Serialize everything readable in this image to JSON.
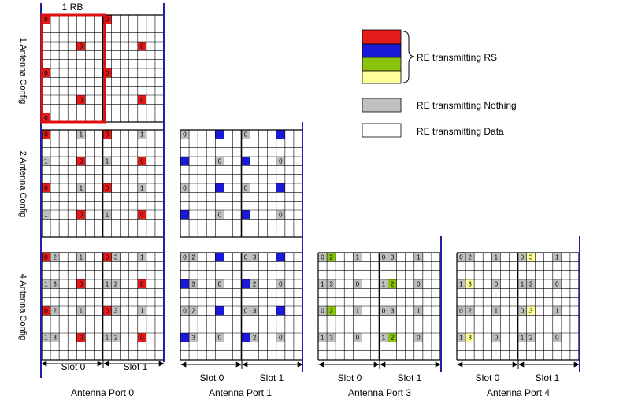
{
  "colors": {
    "rs_port0": "#e31b1b",
    "rs_port1": "#1a1ad6",
    "rs_port3": "#8ac20d",
    "rs_port4": "#ffff99",
    "nothing": "#c0c0c0",
    "data": "#ffffff",
    "separator": "#1f1fa8",
    "rb_highlight": "#e01010"
  },
  "rb_label": "1 RB",
  "row_labels": [
    "1 Antenna Config",
    "2 Antenna Config",
    "4 Antenna Config"
  ],
  "slot_labels": [
    "Slot 0",
    "Slot 1"
  ],
  "port_labels": [
    "Antenna Port 0",
    "Antenna Port 1",
    "Antenna Port 3",
    "Antenna Port 4"
  ],
  "legend": [
    {
      "label": "RE transmitting RS",
      "kind": "rs"
    },
    {
      "label": "RE transmitting Nothing",
      "kind": "nothing"
    },
    {
      "label": "RE transmitting Data",
      "kind": "data"
    }
  ],
  "grid": {
    "cols": 14,
    "rows": 12,
    "cells": [
      {
        "config": 1,
        "port": 0,
        "col": 0,
        "row": 0,
        "text": "0",
        "kind": "rs"
      },
      {
        "config": 1,
        "port": 0,
        "col": 4,
        "row": 3,
        "text": "0",
        "kind": "rs"
      },
      {
        "config": 1,
        "port": 0,
        "col": 7,
        "row": 0,
        "text": "0",
        "kind": "rs"
      },
      {
        "config": 1,
        "port": 0,
        "col": 11,
        "row": 3,
        "text": "0",
        "kind": "rs"
      },
      {
        "config": 1,
        "port": 0,
        "col": 0,
        "row": 6,
        "text": "0",
        "kind": "rs"
      },
      {
        "config": 1,
        "port": 0,
        "col": 4,
        "row": 9,
        "text": "0",
        "kind": "rs"
      },
      {
        "config": 1,
        "port": 0,
        "col": 7,
        "row": 6,
        "text": "0",
        "kind": "rs"
      },
      {
        "config": 1,
        "port": 0,
        "col": 11,
        "row": 9,
        "text": "0",
        "kind": "rs"
      },
      {
        "config": 1,
        "port": 0,
        "col": 0,
        "row": 11,
        "text": "0",
        "kind": "rs"
      },
      {
        "config": 2,
        "port": 0,
        "col": 0,
        "row": 0,
        "text": "0",
        "kind": "rs"
      },
      {
        "config": 2,
        "port": 0,
        "col": 4,
        "row": 0,
        "text": "1",
        "kind": "nothing"
      },
      {
        "config": 2,
        "port": 0,
        "col": 7,
        "row": 0,
        "text": "0",
        "kind": "rs"
      },
      {
        "config": 2,
        "port": 0,
        "col": 11,
        "row": 0,
        "text": "1",
        "kind": "nothing"
      },
      {
        "config": 2,
        "port": 0,
        "col": 0,
        "row": 3,
        "text": "1",
        "kind": "nothing"
      },
      {
        "config": 2,
        "port": 0,
        "col": 4,
        "row": 3,
        "text": "0",
        "kind": "rs"
      },
      {
        "config": 2,
        "port": 0,
        "col": 7,
        "row": 3,
        "text": "1",
        "kind": "nothing"
      },
      {
        "config": 2,
        "port": 0,
        "col": 11,
        "row": 3,
        "text": "0",
        "kind": "rs"
      },
      {
        "config": 2,
        "port": 0,
        "col": 0,
        "row": 6,
        "text": "0",
        "kind": "rs"
      },
      {
        "config": 2,
        "port": 0,
        "col": 4,
        "row": 6,
        "text": "1",
        "kind": "nothing"
      },
      {
        "config": 2,
        "port": 0,
        "col": 7,
        "row": 6,
        "text": "0",
        "kind": "rs"
      },
      {
        "config": 2,
        "port": 0,
        "col": 11,
        "row": 6,
        "text": "1",
        "kind": "nothing"
      },
      {
        "config": 2,
        "port": 0,
        "col": 0,
        "row": 9,
        "text": "1",
        "kind": "nothing"
      },
      {
        "config": 2,
        "port": 0,
        "col": 4,
        "row": 9,
        "text": "0",
        "kind": "rs"
      },
      {
        "config": 2,
        "port": 0,
        "col": 7,
        "row": 9,
        "text": "1",
        "kind": "nothing"
      },
      {
        "config": 2,
        "port": 0,
        "col": 11,
        "row": 9,
        "text": "0",
        "kind": "rs"
      },
      {
        "config": 2,
        "port": 1,
        "col": 0,
        "row": 0,
        "text": "0",
        "kind": "nothing"
      },
      {
        "config": 2,
        "port": 1,
        "col": 4,
        "row": 0,
        "text": "",
        "kind": "rs"
      },
      {
        "config": 2,
        "port": 1,
        "col": 7,
        "row": 0,
        "text": "0",
        "kind": "nothing"
      },
      {
        "config": 2,
        "port": 1,
        "col": 11,
        "row": 0,
        "text": "",
        "kind": "rs"
      },
      {
        "config": 2,
        "port": 1,
        "col": 0,
        "row": 3,
        "text": "",
        "kind": "rs"
      },
      {
        "config": 2,
        "port": 1,
        "col": 4,
        "row": 3,
        "text": "0",
        "kind": "nothing"
      },
      {
        "config": 2,
        "port": 1,
        "col": 7,
        "row": 3,
        "text": "",
        "kind": "rs"
      },
      {
        "config": 2,
        "port": 1,
        "col": 11,
        "row": 3,
        "text": "0",
        "kind": "nothing"
      },
      {
        "config": 2,
        "port": 1,
        "col": 0,
        "row": 6,
        "text": "0",
        "kind": "nothing"
      },
      {
        "config": 2,
        "port": 1,
        "col": 4,
        "row": 6,
        "text": "",
        "kind": "rs"
      },
      {
        "config": 2,
        "port": 1,
        "col": 7,
        "row": 6,
        "text": "0",
        "kind": "nothing"
      },
      {
        "config": 2,
        "port": 1,
        "col": 11,
        "row": 6,
        "text": "",
        "kind": "rs"
      },
      {
        "config": 2,
        "port": 1,
        "col": 0,
        "row": 9,
        "text": "",
        "kind": "rs"
      },
      {
        "config": 2,
        "port": 1,
        "col": 4,
        "row": 9,
        "text": "0",
        "kind": "nothing"
      },
      {
        "config": 2,
        "port": 1,
        "col": 7,
        "row": 9,
        "text": "",
        "kind": "rs"
      },
      {
        "config": 2,
        "port": 1,
        "col": 11,
        "row": 9,
        "text": "0",
        "kind": "nothing"
      },
      {
        "config": 4,
        "port": 0,
        "col": 0,
        "row": 0,
        "text": "0",
        "kind": "rs"
      },
      {
        "config": 4,
        "port": 0,
        "col": 1,
        "row": 0,
        "text": "2",
        "kind": "nothing"
      },
      {
        "config": 4,
        "port": 0,
        "col": 4,
        "row": 0,
        "text": "1",
        "kind": "nothing"
      },
      {
        "config": 4,
        "port": 0,
        "col": 7,
        "row": 0,
        "text": "0",
        "kind": "rs"
      },
      {
        "config": 4,
        "port": 0,
        "col": 8,
        "row": 0,
        "text": "3",
        "kind": "nothing"
      },
      {
        "config": 4,
        "port": 0,
        "col": 11,
        "row": 0,
        "text": "1",
        "kind": "nothing"
      },
      {
        "config": 4,
        "port": 0,
        "col": 0,
        "row": 3,
        "text": "1",
        "kind": "nothing"
      },
      {
        "config": 4,
        "port": 0,
        "col": 1,
        "row": 3,
        "text": "3",
        "kind": "nothing"
      },
      {
        "config": 4,
        "port": 0,
        "col": 4,
        "row": 3,
        "text": "0",
        "kind": "rs"
      },
      {
        "config": 4,
        "port": 0,
        "col": 7,
        "row": 3,
        "text": "1",
        "kind": "nothing"
      },
      {
        "config": 4,
        "port": 0,
        "col": 8,
        "row": 3,
        "text": "2",
        "kind": "nothing"
      },
      {
        "config": 4,
        "port": 0,
        "col": 11,
        "row": 3,
        "text": "0",
        "kind": "rs"
      },
      {
        "config": 4,
        "port": 0,
        "col": 0,
        "row": 6,
        "text": "0",
        "kind": "rs"
      },
      {
        "config": 4,
        "port": 0,
        "col": 1,
        "row": 6,
        "text": "2",
        "kind": "nothing"
      },
      {
        "config": 4,
        "port": 0,
        "col": 4,
        "row": 6,
        "text": "1",
        "kind": "nothing"
      },
      {
        "config": 4,
        "port": 0,
        "col": 7,
        "row": 6,
        "text": "0",
        "kind": "rs"
      },
      {
        "config": 4,
        "port": 0,
        "col": 8,
        "row": 6,
        "text": "3",
        "kind": "nothing"
      },
      {
        "config": 4,
        "port": 0,
        "col": 11,
        "row": 6,
        "text": "1",
        "kind": "nothing"
      },
      {
        "config": 4,
        "port": 0,
        "col": 0,
        "row": 9,
        "text": "1",
        "kind": "nothing"
      },
      {
        "config": 4,
        "port": 0,
        "col": 1,
        "row": 9,
        "text": "3",
        "kind": "nothing"
      },
      {
        "config": 4,
        "port": 0,
        "col": 4,
        "row": 9,
        "text": "0",
        "kind": "rs"
      },
      {
        "config": 4,
        "port": 0,
        "col": 7,
        "row": 9,
        "text": "1",
        "kind": "nothing"
      },
      {
        "config": 4,
        "port": 0,
        "col": 8,
        "row": 9,
        "text": "2",
        "kind": "nothing"
      },
      {
        "config": 4,
        "port": 0,
        "col": 11,
        "row": 9,
        "text": "0",
        "kind": "rs"
      },
      {
        "config": 4,
        "port": 1,
        "col": 0,
        "row": 0,
        "text": "0",
        "kind": "nothing"
      },
      {
        "config": 4,
        "port": 1,
        "col": 1,
        "row": 0,
        "text": "2",
        "kind": "nothing"
      },
      {
        "config": 4,
        "port": 1,
        "col": 4,
        "row": 0,
        "text": "",
        "kind": "rs"
      },
      {
        "config": 4,
        "port": 1,
        "col": 7,
        "row": 0,
        "text": "0",
        "kind": "nothing"
      },
      {
        "config": 4,
        "port": 1,
        "col": 8,
        "row": 0,
        "text": "3",
        "kind": "nothing"
      },
      {
        "config": 4,
        "port": 1,
        "col": 11,
        "row": 0,
        "text": "",
        "kind": "rs"
      },
      {
        "config": 4,
        "port": 1,
        "col": 0,
        "row": 3,
        "text": "",
        "kind": "rs"
      },
      {
        "config": 4,
        "port": 1,
        "col": 1,
        "row": 3,
        "text": "3",
        "kind": "nothing"
      },
      {
        "config": 4,
        "port": 1,
        "col": 4,
        "row": 3,
        "text": "0",
        "kind": "nothing"
      },
      {
        "config": 4,
        "port": 1,
        "col": 7,
        "row": 3,
        "text": "",
        "kind": "rs"
      },
      {
        "config": 4,
        "port": 1,
        "col": 8,
        "row": 3,
        "text": "2",
        "kind": "nothing"
      },
      {
        "config": 4,
        "port": 1,
        "col": 11,
        "row": 3,
        "text": "0",
        "kind": "nothing"
      },
      {
        "config": 4,
        "port": 1,
        "col": 0,
        "row": 6,
        "text": "0",
        "kind": "nothing"
      },
      {
        "config": 4,
        "port": 1,
        "col": 1,
        "row": 6,
        "text": "2",
        "kind": "nothing"
      },
      {
        "config": 4,
        "port": 1,
        "col": 4,
        "row": 6,
        "text": "",
        "kind": "rs"
      },
      {
        "config": 4,
        "port": 1,
        "col": 7,
        "row": 6,
        "text": "0",
        "kind": "nothing"
      },
      {
        "config": 4,
        "port": 1,
        "col": 8,
        "row": 6,
        "text": "3",
        "kind": "nothing"
      },
      {
        "config": 4,
        "port": 1,
        "col": 11,
        "row": 6,
        "text": "",
        "kind": "rs"
      },
      {
        "config": 4,
        "port": 1,
        "col": 0,
        "row": 9,
        "text": "",
        "kind": "rs"
      },
      {
        "config": 4,
        "port": 1,
        "col": 1,
        "row": 9,
        "text": "3",
        "kind": "nothing"
      },
      {
        "config": 4,
        "port": 1,
        "col": 4,
        "row": 9,
        "text": "0",
        "kind": "nothing"
      },
      {
        "config": 4,
        "port": 1,
        "col": 7,
        "row": 9,
        "text": "",
        "kind": "rs"
      },
      {
        "config": 4,
        "port": 1,
        "col": 8,
        "row": 9,
        "text": "2",
        "kind": "nothing"
      },
      {
        "config": 4,
        "port": 1,
        "col": 11,
        "row": 9,
        "text": "0",
        "kind": "nothing"
      },
      {
        "config": 4,
        "port": 3,
        "col": 0,
        "row": 0,
        "text": "0",
        "kind": "nothing"
      },
      {
        "config": 4,
        "port": 3,
        "col": 1,
        "row": 0,
        "text": "2",
        "kind": "rs"
      },
      {
        "config": 4,
        "port": 3,
        "col": 4,
        "row": 0,
        "text": "1",
        "kind": "nothing"
      },
      {
        "config": 4,
        "port": 3,
        "col": 7,
        "row": 0,
        "text": "0",
        "kind": "nothing"
      },
      {
        "config": 4,
        "port": 3,
        "col": 8,
        "row": 0,
        "text": "3",
        "kind": "nothing"
      },
      {
        "config": 4,
        "port": 3,
        "col": 11,
        "row": 0,
        "text": "1",
        "kind": "nothing"
      },
      {
        "config": 4,
        "port": 3,
        "col": 0,
        "row": 3,
        "text": "1",
        "kind": "nothing"
      },
      {
        "config": 4,
        "port": 3,
        "col": 1,
        "row": 3,
        "text": "3",
        "kind": "nothing"
      },
      {
        "config": 4,
        "port": 3,
        "col": 4,
        "row": 3,
        "text": "0",
        "kind": "nothing"
      },
      {
        "config": 4,
        "port": 3,
        "col": 7,
        "row": 3,
        "text": "1",
        "kind": "nothing"
      },
      {
        "config": 4,
        "port": 3,
        "col": 8,
        "row": 3,
        "text": "2",
        "kind": "rs"
      },
      {
        "config": 4,
        "port": 3,
        "col": 11,
        "row": 3,
        "text": "0",
        "kind": "nothing"
      },
      {
        "config": 4,
        "port": 3,
        "col": 0,
        "row": 6,
        "text": "0",
        "kind": "nothing"
      },
      {
        "config": 4,
        "port": 3,
        "col": 1,
        "row": 6,
        "text": "2",
        "kind": "rs"
      },
      {
        "config": 4,
        "port": 3,
        "col": 4,
        "row": 6,
        "text": "1",
        "kind": "nothing"
      },
      {
        "config": 4,
        "port": 3,
        "col": 7,
        "row": 6,
        "text": "0",
        "kind": "nothing"
      },
      {
        "config": 4,
        "port": 3,
        "col": 8,
        "row": 6,
        "text": "3",
        "kind": "nothing"
      },
      {
        "config": 4,
        "port": 3,
        "col": 11,
        "row": 6,
        "text": "1",
        "kind": "nothing"
      },
      {
        "config": 4,
        "port": 3,
        "col": 0,
        "row": 9,
        "text": "1",
        "kind": "nothing"
      },
      {
        "config": 4,
        "port": 3,
        "col": 1,
        "row": 9,
        "text": "3",
        "kind": "nothing"
      },
      {
        "config": 4,
        "port": 3,
        "col": 4,
        "row": 9,
        "text": "0",
        "kind": "nothing"
      },
      {
        "config": 4,
        "port": 3,
        "col": 7,
        "row": 9,
        "text": "1",
        "kind": "nothing"
      },
      {
        "config": 4,
        "port": 3,
        "col": 8,
        "row": 9,
        "text": "2",
        "kind": "rs"
      },
      {
        "config": 4,
        "port": 3,
        "col": 11,
        "row": 9,
        "text": "0",
        "kind": "nothing"
      },
      {
        "config": 4,
        "port": 4,
        "col": 0,
        "row": 0,
        "text": "0",
        "kind": "nothing"
      },
      {
        "config": 4,
        "port": 4,
        "col": 1,
        "row": 0,
        "text": "2",
        "kind": "nothing"
      },
      {
        "config": 4,
        "port": 4,
        "col": 4,
        "row": 0,
        "text": "1",
        "kind": "nothing"
      },
      {
        "config": 4,
        "port": 4,
        "col": 7,
        "row": 0,
        "text": "0",
        "kind": "nothing"
      },
      {
        "config": 4,
        "port": 4,
        "col": 8,
        "row": 0,
        "text": "3",
        "kind": "rs"
      },
      {
        "config": 4,
        "port": 4,
        "col": 11,
        "row": 0,
        "text": "1",
        "kind": "nothing"
      },
      {
        "config": 4,
        "port": 4,
        "col": 0,
        "row": 3,
        "text": "1",
        "kind": "nothing"
      },
      {
        "config": 4,
        "port": 4,
        "col": 1,
        "row": 3,
        "text": "3",
        "kind": "rs"
      },
      {
        "config": 4,
        "port": 4,
        "col": 4,
        "row": 3,
        "text": "0",
        "kind": "nothing"
      },
      {
        "config": 4,
        "port": 4,
        "col": 7,
        "row": 3,
        "text": "1",
        "kind": "nothing"
      },
      {
        "config": 4,
        "port": 4,
        "col": 8,
        "row": 3,
        "text": "2",
        "kind": "nothing"
      },
      {
        "config": 4,
        "port": 4,
        "col": 11,
        "row": 3,
        "text": "0",
        "kind": "nothing"
      },
      {
        "config": 4,
        "port": 4,
        "col": 0,
        "row": 6,
        "text": "0",
        "kind": "nothing"
      },
      {
        "config": 4,
        "port": 4,
        "col": 1,
        "row": 6,
        "text": "2",
        "kind": "nothing"
      },
      {
        "config": 4,
        "port": 4,
        "col": 4,
        "row": 6,
        "text": "1",
        "kind": "nothing"
      },
      {
        "config": 4,
        "port": 4,
        "col": 7,
        "row": 6,
        "text": "0",
        "kind": "nothing"
      },
      {
        "config": 4,
        "port": 4,
        "col": 8,
        "row": 6,
        "text": "3",
        "kind": "rs"
      },
      {
        "config": 4,
        "port": 4,
        "col": 11,
        "row": 6,
        "text": "1",
        "kind": "nothing"
      },
      {
        "config": 4,
        "port": 4,
        "col": 0,
        "row": 9,
        "text": "1",
        "kind": "nothing"
      },
      {
        "config": 4,
        "port": 4,
        "col": 1,
        "row": 9,
        "text": "3",
        "kind": "rs"
      },
      {
        "config": 4,
        "port": 4,
        "col": 4,
        "row": 9,
        "text": "0",
        "kind": "nothing"
      },
      {
        "config": 4,
        "port": 4,
        "col": 7,
        "row": 9,
        "text": "1",
        "kind": "nothing"
      },
      {
        "config": 4,
        "port": 4,
        "col": 8,
        "row": 9,
        "text": "2",
        "kind": "nothing"
      },
      {
        "config": 4,
        "port": 4,
        "col": 11,
        "row": 9,
        "text": "0",
        "kind": "nothing"
      }
    ]
  }
}
